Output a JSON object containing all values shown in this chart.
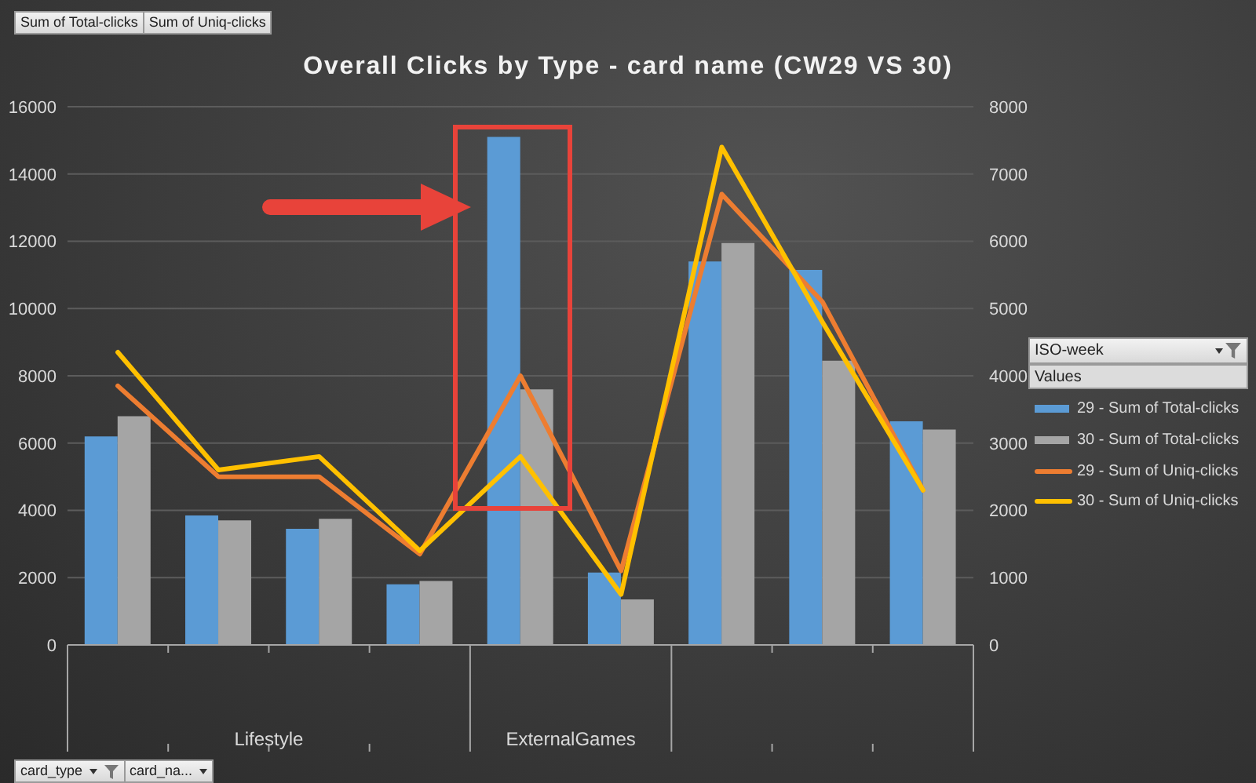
{
  "chart_data": {
    "type": "bar",
    "title": "Overall Clicks by Type - card name (CW29 VS 30)",
    "categories": [
      null,
      null,
      null,
      null,
      null,
      null,
      null,
      null,
      null
    ],
    "series": [
      {
        "name": "29 - Sum of Total-clicks",
        "color": "#5b9bd5",
        "values": [
          6200,
          3850,
          3450,
          1800,
          15100,
          2150,
          11400,
          11150,
          6650
        ]
      },
      {
        "name": "30 - Sum of Total-clicks",
        "color": "#a5a5a5",
        "values": [
          6800,
          3700,
          3750,
          1900,
          7600,
          1350,
          11950,
          8450,
          6400
        ]
      },
      {
        "name": "29 - Sum of Uniq-clicks",
        "type": "line",
        "axis": "y2",
        "color": "#ed7d31",
        "values": [
          3850,
          2500,
          2500,
          1350,
          4000,
          1100,
          6700,
          5100,
          2300
        ]
      },
      {
        "name": "30 - Sum of Uniq-clicks",
        "type": "line",
        "axis": "y2",
        "color": "#ffc000",
        "values": [
          4350,
          2600,
          2800,
          1400,
          2800,
          750,
          7400,
          4800,
          2300
        ]
      }
    ],
    "ylim": [
      0,
      16000
    ],
    "yticks": [
      0,
      2000,
      4000,
      6000,
      8000,
      10000,
      12000,
      14000,
      16000
    ],
    "y2lim": [
      0,
      8000
    ],
    "y2ticks": [
      0,
      1000,
      2000,
      3000,
      4000,
      5000,
      6000,
      7000,
      8000
    ],
    "grid": "y",
    "legend": "right",
    "legend_title": "ISO-week",
    "annotations": [
      "Sum of Total-clicks",
      "Sum of Uniq-clicks",
      "Values",
      "card_type",
      "card_na...",
      "Lifestyle",
      "ExternalGames"
    ]
  }
}
